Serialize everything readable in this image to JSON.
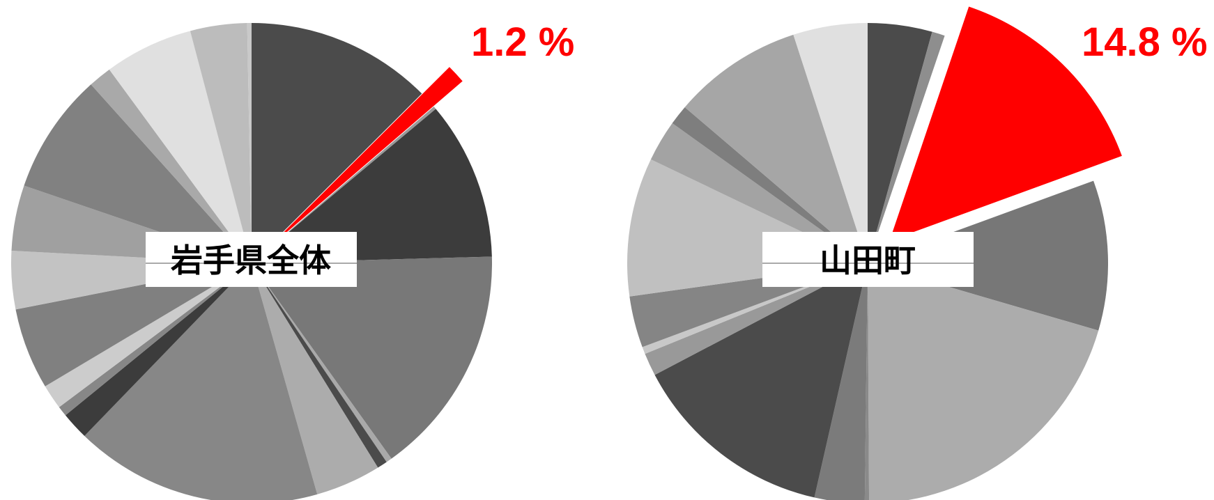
{
  "chart_data": [
    {
      "type": "pie",
      "title": "岩手県全体",
      "highlight_color": "#ff0000",
      "highlight_label": "1.2 %",
      "highlight_index": 1,
      "slices": [
        {
          "value": 12.8,
          "color": "#4b4b4b"
        },
        {
          "value": 1.2,
          "color": "#ff0000"
        },
        {
          "value": 0.2,
          "color": "#999999"
        },
        {
          "value": 10.9,
          "color": "#3c3c3c"
        },
        {
          "value": 15.9,
          "color": "#787878"
        },
        {
          "value": 0.4,
          "color": "#a9a9a9"
        },
        {
          "value": 0.7,
          "color": "#4b4b4b"
        },
        {
          "value": 4.5,
          "color": "#acacac"
        },
        {
          "value": 17.0,
          "color": "#878787"
        },
        {
          "value": 1.9,
          "color": "#3c3c3c"
        },
        {
          "value": 0.7,
          "color": "#878787"
        },
        {
          "value": 1.7,
          "color": "#cccccc"
        },
        {
          "value": 5.6,
          "color": "#808080"
        },
        {
          "value": 4.0,
          "color": "#c3c3c3"
        },
        {
          "value": 4.5,
          "color": "#a0a0a0"
        },
        {
          "value": 8.3,
          "color": "#818181"
        },
        {
          "value": 1.6,
          "color": "#a9a9a9"
        },
        {
          "value": 6.1,
          "color": "#e0e0e0"
        },
        {
          "value": 3.9,
          "color": "#bcbcbc"
        },
        {
          "value": 0.3,
          "color": "#c9c9c9"
        }
      ]
    },
    {
      "type": "pie",
      "title": "山田町",
      "highlight_color": "#ff0000",
      "highlight_label": "14.8 %",
      "highlight_index": 2,
      "slices": [
        {
          "value": 4.5,
          "color": "#4b4b4b"
        },
        {
          "value": 0.9,
          "color": "#8e8e8e"
        },
        {
          "value": 14.8,
          "color": "#ff0000"
        },
        {
          "value": 10.5,
          "color": "#777777"
        },
        {
          "value": 21.2,
          "color": "#acacac"
        },
        {
          "value": 0.3,
          "color": "#8a8a8a"
        },
        {
          "value": 3.5,
          "color": "#7b7b7b"
        },
        {
          "value": 14.3,
          "color": "#4b4b4b"
        },
        {
          "value": 1.6,
          "color": "#999999"
        },
        {
          "value": 0.5,
          "color": "#c8c8c8"
        },
        {
          "value": 3.6,
          "color": "#858585"
        },
        {
          "value": 9.7,
          "color": "#c0c0c0"
        },
        {
          "value": 2.9,
          "color": "#a3a3a3"
        },
        {
          "value": 1.4,
          "color": "#7e7e7e"
        },
        {
          "value": 9.1,
          "color": "#a6a6a6"
        },
        {
          "value": 5.2,
          "color": "#e0e0e0"
        }
      ]
    }
  ]
}
